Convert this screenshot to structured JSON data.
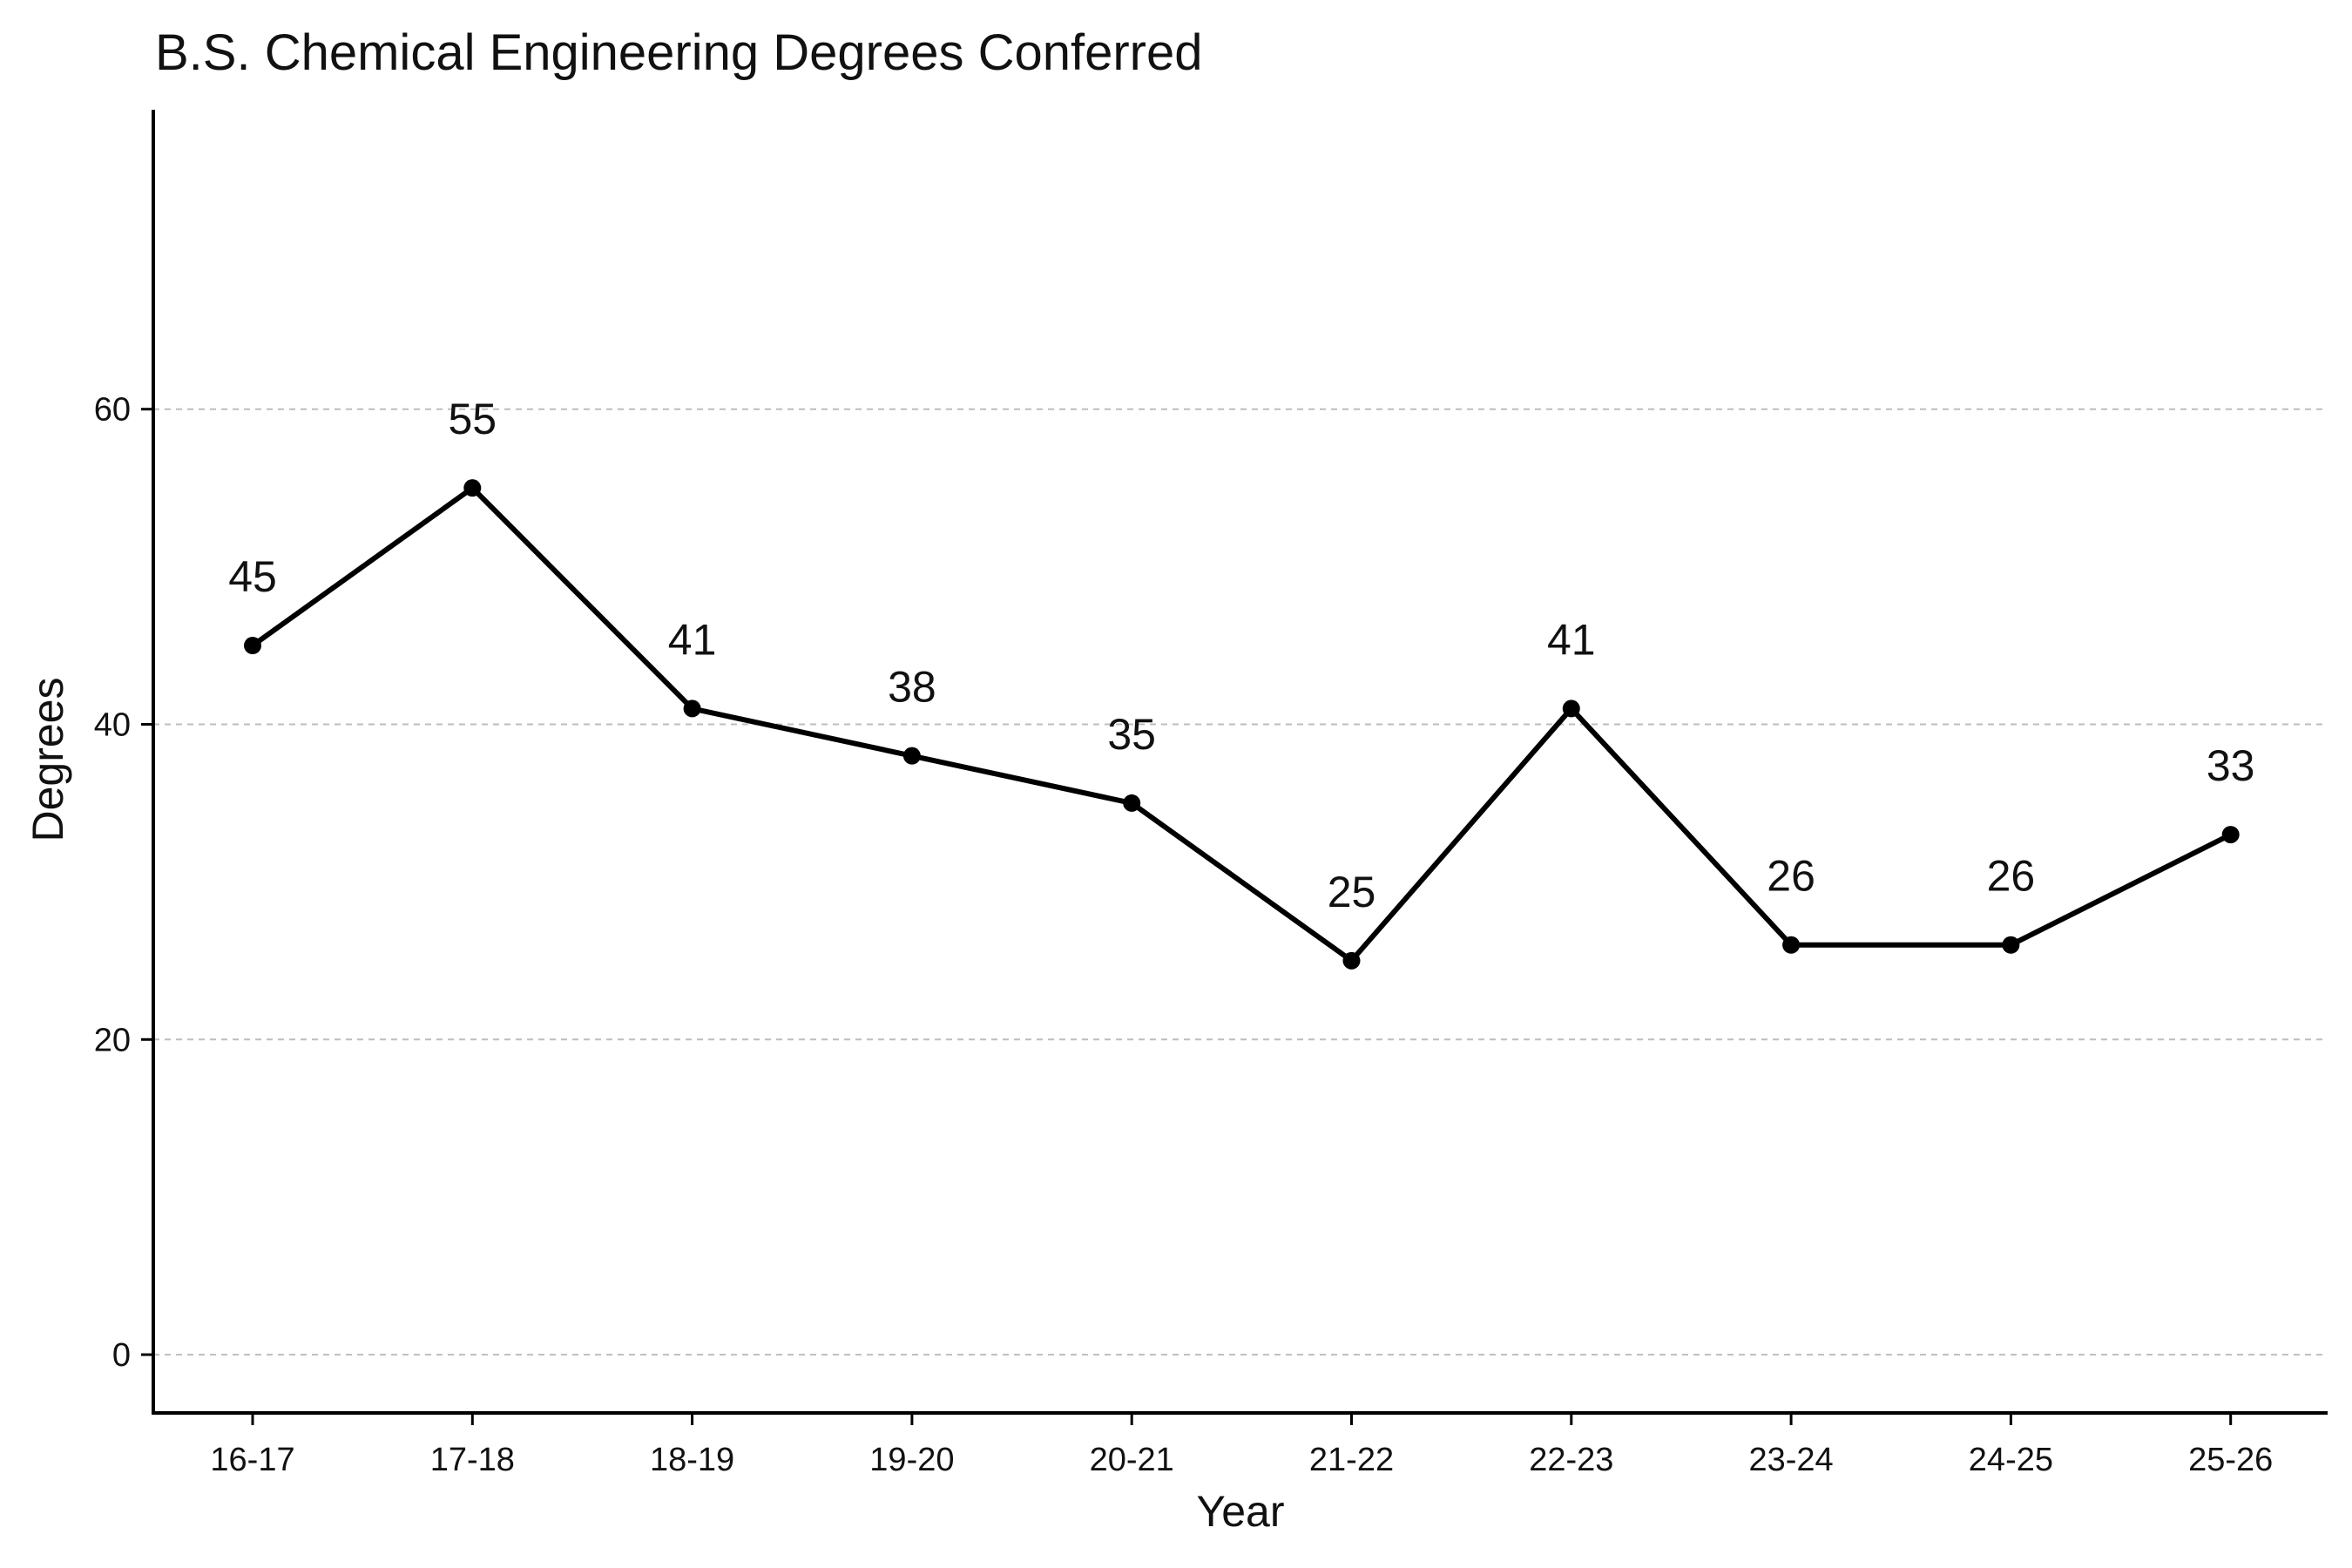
{
  "chart_data": {
    "type": "line",
    "title": "B.S. Chemical Engineering Degrees Conferred",
    "xlabel": "Year",
    "ylabel": "Degrees",
    "categories": [
      "16-17",
      "17-18",
      "18-19",
      "19-20",
      "20-21",
      "21-22",
      "22-23",
      "23-24",
      "24-25",
      "25-26"
    ],
    "series": [
      {
        "values": [
          45,
          55,
          41,
          38,
          35,
          25,
          41,
          26,
          26,
          33
        ]
      }
    ],
    "data_labels": [
      "45",
      "55",
      "41",
      "38",
      "35",
      "25",
      "41",
      "26",
      "26",
      "33"
    ],
    "y_ticks": [
      0,
      20,
      40,
      60
    ],
    "y_tick_labels": [
      "0",
      "20",
      "40",
      "60"
    ],
    "ylim": [
      -3.7,
      79
    ],
    "grid": "horizontal dashed",
    "legend": "none",
    "colors": {
      "line": "#000000",
      "grid": "#bdbdbd"
    }
  }
}
